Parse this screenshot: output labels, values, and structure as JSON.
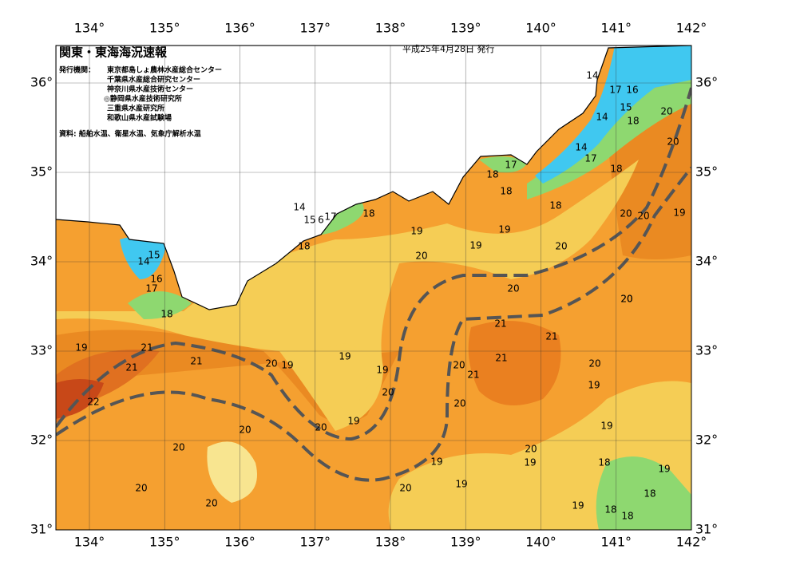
{
  "header": {
    "title": "関東・東海海況速報",
    "date": "平成25年4月28日 発行",
    "issuer_label": "発行機関：",
    "issuers": [
      "東京都島しょ農林水産総合センター",
      "千葉県水産総合研究センター",
      "神奈川県水産技術センター",
      "◎静岡県水産技術研究所",
      "三重県水産研究所",
      "和歌山県水産試験場"
    ],
    "source": "資料: 船舶水温、衛星水温、気象庁解析水温"
  },
  "map": {
    "lon_ticks": [
      {
        "value": 134,
        "label": "134°"
      },
      {
        "value": 135,
        "label": "135°"
      },
      {
        "value": 136,
        "label": "136°"
      },
      {
        "value": 137,
        "label": "137°"
      },
      {
        "value": 138,
        "label": "138°"
      },
      {
        "value": 139,
        "label": "139°"
      },
      {
        "value": 140,
        "label": "140°"
      },
      {
        "value": 141,
        "label": "141°"
      },
      {
        "value": 142,
        "label": "142°"
      }
    ],
    "lat_ticks": [
      {
        "value": 31,
        "label": "31°"
      },
      {
        "value": 32,
        "label": "32°"
      },
      {
        "value": 33,
        "label": "33°"
      },
      {
        "value": 34,
        "label": "34°"
      },
      {
        "value": 35,
        "label": "35°"
      },
      {
        "value": 36,
        "label": "36°"
      }
    ],
    "contour_labels": [
      14,
      17,
      16,
      15,
      14,
      18,
      20,
      20,
      14,
      17,
      18,
      17,
      18,
      18,
      18,
      20,
      20,
      19,
      14,
      15,
      6,
      17,
      18,
      18,
      19,
      19,
      19,
      20,
      20,
      15,
      14,
      16,
      17,
      20,
      18,
      20,
      21,
      21,
      19,
      21,
      21,
      21,
      20,
      19,
      19,
      19,
      20,
      20,
      21,
      21,
      20,
      19,
      22,
      20,
      19,
      20,
      20,
      19,
      20,
      20,
      20,
      19,
      19,
      18,
      19,
      19,
      20,
      20,
      18,
      20,
      19,
      18,
      18
    ]
  }
}
